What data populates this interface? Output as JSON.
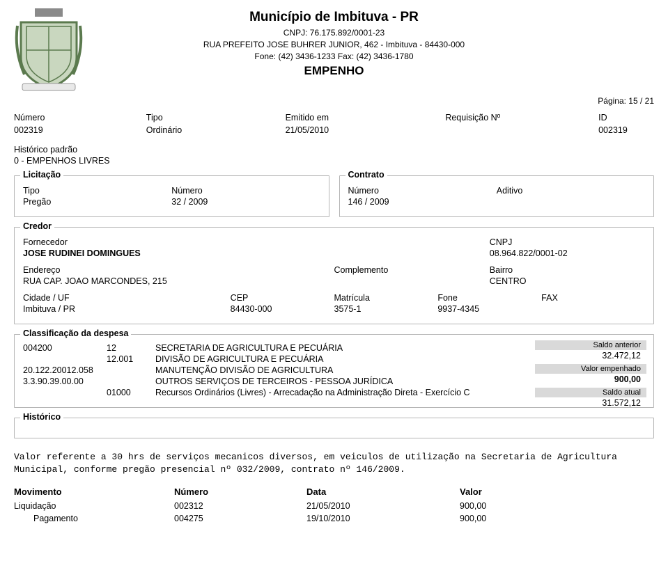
{
  "header": {
    "municipio": "Município de Imbituva - PR",
    "cnpj_line": "CNPJ: 76.175.892/0001-23",
    "address": "RUA PREFEITO JOSE BUHRER JUNIOR, 462 - Imbituva - 84430-000",
    "phones": "Fone: (42) 3436-1233   Fax: (42) 3436-1780",
    "doc_title": "EMPENHO",
    "page_label": "Página: 15 /   21"
  },
  "summary": {
    "labels": {
      "numero": "Número",
      "tipo": "Tipo",
      "emitido": "Emitido em",
      "req": "Requisição Nº",
      "id": "ID"
    },
    "numero": "002319",
    "tipo": "Ordinário",
    "emitido": "21/05/2010",
    "req": "",
    "id": "002319"
  },
  "historico_padrao": {
    "label": "Histórico padrão",
    "value": "0 - EMPENHOS LIVRES"
  },
  "licitacao": {
    "legend": "Licitação",
    "tipo_label": "Tipo",
    "tipo_value": "Pregão",
    "numero_label": "Número",
    "numero_value": "32 / 2009"
  },
  "contrato": {
    "legend": "Contrato",
    "numero_label": "Número",
    "numero_value": "146 / 2009",
    "aditivo_label": "Aditivo",
    "aditivo_value": ""
  },
  "credor": {
    "legend": "Credor",
    "fornecedor_label": "Fornecedor",
    "fornecedor_value": "JOSE RUDINEI DOMINGUES",
    "cnpj_label": "CNPJ",
    "cnpj_value": "08.964.822/0001-02",
    "endereco_label": "Endereço",
    "endereco_value": "RUA CAP. JOAO MARCONDES, 215",
    "complemento_label": "Complemento",
    "complemento_value": "",
    "bairro_label": "Bairro",
    "bairro_value": "CENTRO",
    "cidade_label": "Cidade / UF",
    "cidade_value": "Imbituva / PR",
    "cep_label": "CEP",
    "cep_value": "84430-000",
    "matricula_label": "Matrícula",
    "matricula_value": "3575-1",
    "fone_label": "Fone",
    "fone_value": "9937-4345",
    "fax_label": "FAX",
    "fax_value": ""
  },
  "classificacao": {
    "legend": "Classificação da despesa",
    "lines": [
      {
        "code": "004200",
        "mid": "12",
        "desc": "SECRETARIA DE AGRICULTURA E PECUÁRIA"
      },
      {
        "code": "",
        "mid": "12.001",
        "desc": "DIVISÃO DE AGRICULTURA E PECUÁRIA"
      },
      {
        "code": "20.122.20012.058",
        "mid": "",
        "desc": "MANUTENÇÃO DIVISÃO DE AGRICULTURA"
      },
      {
        "code": "3.3.90.39.00.00",
        "mid": "",
        "desc": "OUTROS SERVIÇOS DE TERCEIROS - PESSOA JURÍDICA"
      },
      {
        "code": "",
        "mid": "01000",
        "desc": "Recursos Ordinários (Livres) - Arrecadação na Administração Direta - Exercício C"
      }
    ],
    "badges": {
      "saldo_anterior_label": "Saldo anterior",
      "saldo_anterior_value": "32.472,12",
      "valor_emp_label": "Valor empenhado",
      "valor_emp_value": "900,00",
      "saldo_atual_label": "Saldo atual",
      "saldo_atual_value": "31.572,12"
    },
    "badge_bg": "#d9d9d9"
  },
  "historico": {
    "legend": "Histórico",
    "text": "Valor referente a 30 hrs de serviços mecanicos diversos, em veiculos de utilização na Secretaria de Agricultura Municipal, conforme pregão presencial nº 032/2009, contrato nº 146/2009."
  },
  "movimentos": {
    "headers": {
      "c1": "Movimento",
      "c2": "Número",
      "c3": "Data",
      "c4": "Valor"
    },
    "rows": [
      {
        "c1": "Liquidação",
        "c2": "002312",
        "c3": "21/05/2010",
        "c4": "900,00",
        "indent": false
      },
      {
        "c1": "Pagamento",
        "c2": "004275",
        "c3": "19/10/2010",
        "c4": "900,00",
        "indent": true
      }
    ]
  },
  "crest_colors": {
    "shield_outer": "#5b7a4e",
    "shield_inner": "#c9d7bf",
    "banner": "#e9e9e9",
    "accent": "#5b7a4e",
    "tower": "#8a8a8a"
  }
}
